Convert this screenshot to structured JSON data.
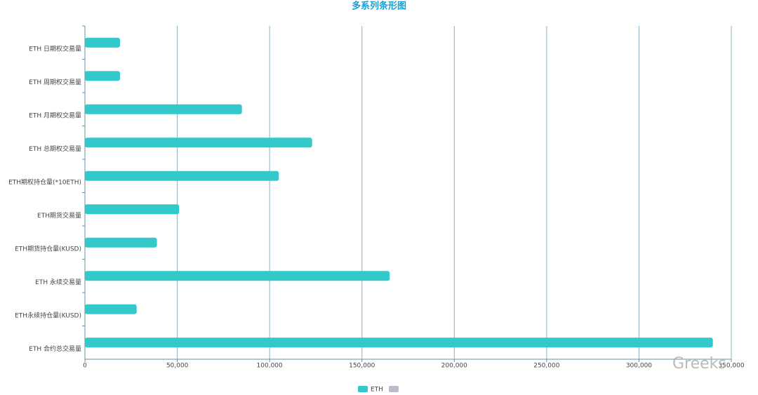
{
  "chart_data": {
    "type": "bar",
    "orientation": "horizontal",
    "title": "多系列条形图",
    "categories": [
      "ETH 日期权交易量",
      "ETH 周期权交易量",
      "ETH 月期权交易量",
      "ETH 总期权交易量",
      "ETH期权持仓量(*10ETH)",
      "ETH期货交易量",
      "ETH期货持仓量(KUSD)",
      "ETH 永续交易量",
      "ETH永续持仓量(KUSD)",
      "ETH 合约总交易量"
    ],
    "series": [
      {
        "name": "ETH",
        "color": "#33c9cb",
        "values": [
          19000,
          19000,
          85000,
          123000,
          105000,
          51000,
          39000,
          165000,
          28000,
          340000
        ]
      },
      {
        "name": null,
        "color": "#b9bcc6",
        "values": [
          null,
          null,
          null,
          null,
          null,
          null,
          null,
          null,
          null,
          null
        ]
      }
    ],
    "xlim": [
      0,
      350000
    ],
    "xticks": [
      0,
      {
        "value": 50000,
        "label": "50,000"
      },
      {
        "value": 100000,
        "label": "100,000"
      },
      {
        "value": 150000,
        "label": "150,000"
      },
      {
        "value": 200000,
        "label": "200,000"
      },
      {
        "value": 250000,
        "label": "250,000"
      },
      {
        "value": 300000,
        "label": "300,000"
      },
      {
        "value": 350000,
        "label": "350,000"
      }
    ],
    "grid": true,
    "legend": "bottom",
    "watermark": "Greeks"
  }
}
